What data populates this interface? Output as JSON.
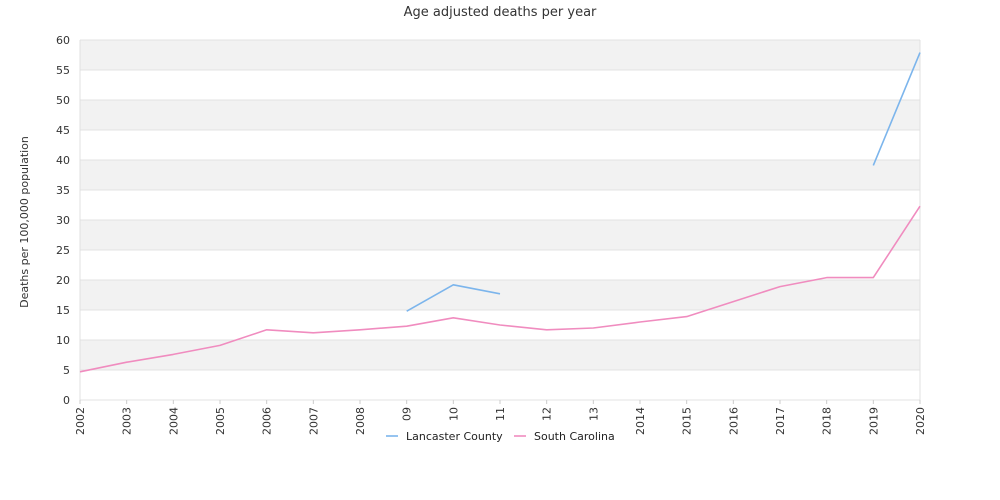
{
  "chart_data": {
    "type": "line",
    "title": "Age adjusted deaths per year",
    "xlabel": "",
    "ylabel": "Deaths per 100,000 population",
    "ylim": [
      0,
      60
    ],
    "yticks": [
      0,
      5,
      10,
      15,
      20,
      25,
      30,
      35,
      40,
      45,
      50,
      55,
      60
    ],
    "categories": [
      "2002",
      "2003",
      "2004",
      "2005",
      "2006",
      "2007",
      "2008",
      "09",
      "10",
      "11",
      "12",
      "13",
      "2014",
      "2015",
      "2016",
      "2017",
      "2018",
      "2019",
      "2020"
    ],
    "grid": "horizontal bands",
    "legend_position": "bottom",
    "series": [
      {
        "name": "Lancaster County",
        "color": "#7cb5ec",
        "values": [
          null,
          null,
          null,
          null,
          null,
          null,
          null,
          14.8,
          19.2,
          17.7,
          null,
          null,
          null,
          null,
          null,
          null,
          null,
          39.1,
          57.9
        ]
      },
      {
        "name": "South Carolina",
        "color": "#f08cbf",
        "values": [
          4.7,
          6.3,
          7.6,
          9.1,
          11.7,
          11.2,
          11.7,
          12.3,
          13.7,
          12.5,
          11.7,
          12.0,
          13.0,
          13.9,
          16.4,
          18.9,
          20.4,
          20.4,
          32.3
        ]
      }
    ]
  }
}
